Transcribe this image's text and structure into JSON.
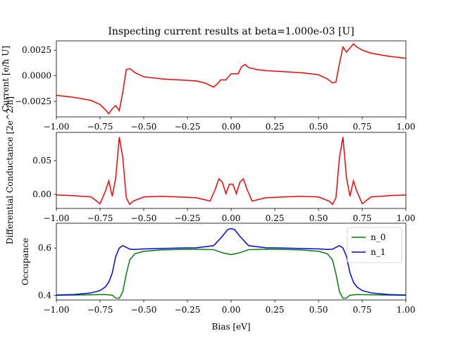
{
  "chart_data": [
    {
      "type": "line",
      "title": "Inspecting current results at beta=1.000e-03 [U]",
      "ylabel": "Current [e/ħ U]",
      "xlim": [
        -1.0,
        1.0
      ],
      "ylim": [
        -0.004,
        0.0034
      ],
      "xticks": [
        "−1.00",
        "−0.75",
        "−0.50",
        "−0.25",
        "0.00",
        "0.25",
        "0.50",
        "0.75",
        "1.00"
      ],
      "yticks": [
        {
          "v": 0.0025,
          "t": "0.0025"
        },
        {
          "v": 0.0,
          "t": "0.0000"
        },
        {
          "v": -0.0025,
          "t": "−0.0025"
        }
      ],
      "series": [
        {
          "color": "#ff0000",
          "x": [
            -1.0,
            -0.9,
            -0.8,
            -0.75,
            -0.72,
            -0.7,
            -0.68,
            -0.66,
            -0.64,
            -0.62,
            -0.6,
            -0.58,
            -0.55,
            -0.5,
            -0.4,
            -0.3,
            -0.2,
            -0.15,
            -0.1,
            -0.08,
            -0.06,
            -0.03,
            0.0,
            0.02,
            0.04,
            0.06,
            0.08,
            0.1,
            0.15,
            0.2,
            0.3,
            0.4,
            0.5,
            0.55,
            0.58,
            0.6,
            0.62,
            0.64,
            0.66,
            0.68,
            0.7,
            0.72,
            0.75,
            0.8,
            0.9,
            1.0
          ],
          "y": [
            -0.0019,
            -0.0021,
            -0.0024,
            -0.0028,
            -0.0033,
            -0.0037,
            -0.0032,
            -0.0029,
            -0.0034,
            -0.0016,
            0.0006,
            0.0007,
            0.0003,
            -0.0001,
            -0.0003,
            -0.0004,
            -0.0005,
            -0.0007,
            -0.0011,
            -0.0008,
            -0.0004,
            -0.0004,
            0.0002,
            0.0002,
            0.0002,
            0.0009,
            0.0011,
            0.0008,
            0.0006,
            0.0005,
            0.0004,
            0.0003,
            0.0001,
            -0.0003,
            -0.0007,
            -0.0006,
            0.0012,
            0.0028,
            0.0023,
            0.0027,
            0.0031,
            0.0028,
            0.0025,
            0.0022,
            0.0019,
            0.0017
          ]
        }
      ]
    },
    {
      "type": "line",
      "ylabel": "Differential Conductance [2e^2/h]",
      "xlim": [
        -1.0,
        1.0
      ],
      "ylim": [
        -0.021,
        0.092
      ],
      "xticks": [
        "−1.00",
        "−0.75",
        "−0.50",
        "−0.25",
        "0.00",
        "0.25",
        "0.50",
        "0.75",
        "1.00"
      ],
      "yticks": [
        {
          "v": 0.05,
          "t": "0.05"
        },
        {
          "v": 0.0,
          "t": "0.00"
        }
      ],
      "series": [
        {
          "color": "#ff0000",
          "x": [
            -1.0,
            -0.9,
            -0.8,
            -0.75,
            -0.72,
            -0.7,
            -0.68,
            -0.66,
            -0.64,
            -0.62,
            -0.6,
            -0.58,
            -0.56,
            -0.5,
            -0.4,
            -0.3,
            -0.2,
            -0.12,
            -0.09,
            -0.07,
            -0.05,
            -0.03,
            -0.01,
            0.01,
            0.03,
            0.05,
            0.07,
            0.09,
            0.12,
            0.2,
            0.3,
            0.4,
            0.5,
            0.56,
            0.58,
            0.6,
            0.62,
            0.64,
            0.66,
            0.68,
            0.7,
            0.72,
            0.75,
            0.8,
            0.9,
            1.0
          ],
          "y": [
            -0.001,
            -0.002,
            -0.004,
            -0.014,
            0.004,
            0.02,
            -0.003,
            0.025,
            0.085,
            0.055,
            -0.005,
            -0.015,
            -0.01,
            -0.004,
            -0.003,
            -0.004,
            -0.005,
            -0.01,
            0.008,
            0.023,
            0.018,
            0.001,
            0.015,
            0.015,
            0.001,
            0.018,
            0.023,
            0.008,
            -0.01,
            -0.005,
            -0.004,
            -0.003,
            -0.004,
            -0.01,
            -0.015,
            -0.005,
            0.055,
            0.085,
            0.025,
            -0.003,
            0.02,
            0.004,
            -0.014,
            -0.004,
            -0.002,
            -0.001
          ]
        }
      ]
    },
    {
      "type": "line",
      "xlabel": "Bias [eV]",
      "ylabel": "Occupance",
      "xlim": [
        -1.0,
        1.0
      ],
      "ylim": [
        0.38,
        0.705
      ],
      "xticks": [
        "−1.00",
        "−0.75",
        "−0.50",
        "−0.25",
        "0.00",
        "0.25",
        "0.50",
        "0.75",
        "1.00"
      ],
      "yticks": [
        {
          "v": 0.6,
          "t": "0.6"
        },
        {
          "v": 0.4,
          "t": "0.4"
        }
      ],
      "legend": "top-right",
      "series": [
        {
          "name": "n_0",
          "color": "#008000",
          "x": [
            -1.0,
            -0.9,
            -0.8,
            -0.72,
            -0.68,
            -0.66,
            -0.64,
            -0.62,
            -0.6,
            -0.58,
            -0.55,
            -0.5,
            -0.4,
            -0.3,
            -0.2,
            -0.1,
            -0.05,
            0.0,
            0.05,
            0.1,
            0.2,
            0.3,
            0.4,
            0.5,
            0.55,
            0.58,
            0.6,
            0.62,
            0.64,
            0.66,
            0.68,
            0.72,
            0.8,
            0.9,
            1.0
          ],
          "y": [
            0.4,
            0.401,
            0.402,
            0.403,
            0.4,
            0.388,
            0.387,
            0.415,
            0.49,
            0.55,
            0.576,
            0.586,
            0.592,
            0.594,
            0.595,
            0.593,
            0.58,
            0.572,
            0.58,
            0.593,
            0.595,
            0.594,
            0.592,
            0.586,
            0.576,
            0.55,
            0.49,
            0.415,
            0.387,
            0.388,
            0.4,
            0.403,
            0.402,
            0.401,
            0.4
          ]
        },
        {
          "name": "n_1",
          "color": "#0000ff",
          "x": [
            -1.0,
            -0.9,
            -0.8,
            -0.75,
            -0.72,
            -0.7,
            -0.68,
            -0.66,
            -0.64,
            -0.62,
            -0.6,
            -0.58,
            -0.55,
            -0.5,
            -0.4,
            -0.3,
            -0.2,
            -0.1,
            -0.05,
            -0.02,
            0.0,
            0.02,
            0.05,
            0.1,
            0.2,
            0.3,
            0.4,
            0.5,
            0.55,
            0.58,
            0.6,
            0.62,
            0.64,
            0.66,
            0.68,
            0.7,
            0.72,
            0.75,
            0.8,
            0.9,
            1.0
          ],
          "y": [
            0.401,
            0.403,
            0.41,
            0.42,
            0.435,
            0.455,
            0.495,
            0.565,
            0.6,
            0.61,
            0.603,
            0.595,
            0.594,
            0.596,
            0.598,
            0.6,
            0.601,
            0.61,
            0.65,
            0.678,
            0.682,
            0.678,
            0.65,
            0.61,
            0.601,
            0.6,
            0.598,
            0.596,
            0.594,
            0.595,
            0.603,
            0.61,
            0.6,
            0.565,
            0.495,
            0.455,
            0.435,
            0.42,
            0.41,
            0.403,
            0.401
          ]
        }
      ]
    }
  ]
}
